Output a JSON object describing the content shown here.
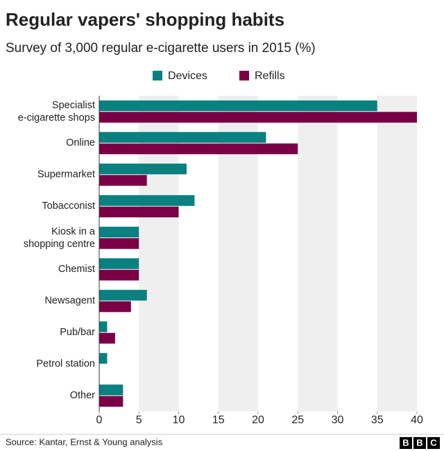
{
  "chart_data": {
    "type": "grouped-bar-horizontal",
    "title": "Regular vapers' shopping habits",
    "subtitle": "Survey of 3,000 regular e-cigarette users in 2015 (%)",
    "categories": [
      "Specialist\ne-cigarette shops",
      "Online",
      "Supermarket",
      "Tobacconist",
      "Kiosk in a\nshopping centre",
      "Chemist",
      "Newsagent",
      "Pub/bar",
      "Petrol station",
      "Other"
    ],
    "series": [
      {
        "name": "Devices",
        "color": "#0a8080",
        "values": [
          35,
          21,
          11,
          12,
          5,
          5,
          6,
          1,
          1,
          3
        ]
      },
      {
        "name": "Refills",
        "color": "#7a0046",
        "values": [
          40,
          25,
          6,
          10,
          5,
          5,
          4,
          2,
          0,
          3
        ]
      }
    ],
    "xlim": [
      0,
      40
    ],
    "xticks": [
      0,
      5,
      10,
      15,
      20,
      25,
      30,
      35,
      40
    ],
    "grid": "alternating-bands",
    "legend": "top",
    "source": "Source: Kantar, Ernst & Young analysis",
    "logo": [
      "B",
      "B",
      "C"
    ]
  }
}
